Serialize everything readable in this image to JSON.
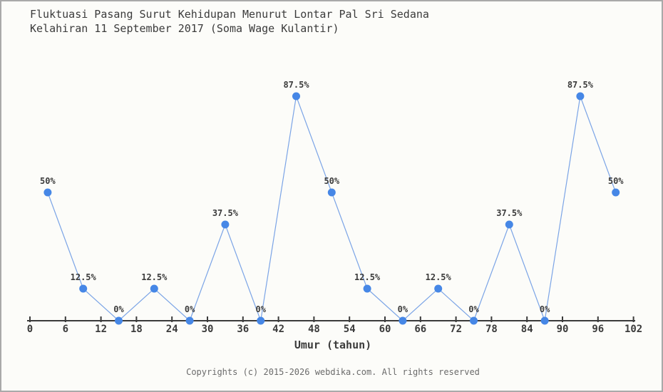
{
  "header": {
    "title_line1": "Fluktuasi Pasang Surut Kehidupan Menurut Lontar Pal Sri Sedana",
    "title_line2": "Kelahiran 11 September 2017 (Soma Wage Kulantir)"
  },
  "footer": {
    "copyright": "Copyrights (c) 2015-2026 webdika.com. All rights reserved"
  },
  "chart_data": {
    "type": "line",
    "title": "Fluktuasi Pasang Surut Kehidupan Menurut Lontar Pal Sri Sedana Kelahiran 11 September 2017 (Soma Wage Kulantir)",
    "xlabel": "Umur (tahun)",
    "ylabel": "",
    "x": [
      3,
      9,
      15,
      21,
      27,
      33,
      39,
      45,
      51,
      57,
      63,
      69,
      75,
      81,
      87,
      93,
      99
    ],
    "values": [
      50,
      12.5,
      0,
      12.5,
      0,
      37.5,
      0,
      87.5,
      50,
      12.5,
      0,
      12.5,
      0,
      37.5,
      0,
      87.5,
      50
    ],
    "point_labels": [
      "50%",
      "12.5%",
      "0%",
      "12.5%",
      "0%",
      "37.5%",
      "0%",
      "87.5%",
      "50%",
      "12.5%",
      "0%",
      "12.5%",
      "0%",
      "37.5%",
      "0%",
      "87.5%",
      "50%"
    ],
    "x_ticks": [
      0,
      6,
      12,
      18,
      24,
      30,
      36,
      42,
      48,
      54,
      60,
      66,
      72,
      78,
      84,
      90,
      96,
      102
    ],
    "xlim": [
      0,
      102
    ],
    "ylim": [
      0,
      100
    ],
    "grid": false,
    "legend": "none",
    "colors": {
      "marker": "#4687e6",
      "line": "#7ba4e6",
      "axis": "#3b3b3b",
      "tick_label": "#3b3b3b",
      "point_label": "#3b3b3b"
    }
  }
}
